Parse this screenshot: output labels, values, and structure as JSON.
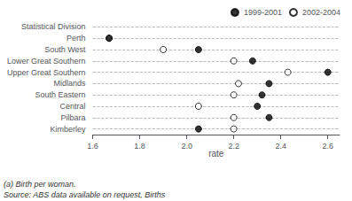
{
  "chart_data": {
    "type": "scatter",
    "categories": [
      "Statistical Division",
      "Perth",
      "South West",
      "Lower Great Southern",
      "Upper Great Southern",
      "Midlands",
      "South Eastern",
      "Central",
      "Pilbara",
      "Kimberley"
    ],
    "series": [
      {
        "name": "1999-2001",
        "color": "black",
        "marker": "circle",
        "values": [
          null,
          1.67,
          2.05,
          2.28,
          2.6,
          2.35,
          2.32,
          2.3,
          2.35,
          2.05
        ]
      },
      {
        "name": "2002-2004",
        "color": "white",
        "marker": "circle",
        "values": [
          null,
          1.67,
          1.9,
          2.2,
          2.43,
          2.22,
          2.2,
          2.05,
          2.2,
          2.2
        ]
      }
    ],
    "xlabel": "rate",
    "xlim": [
      1.6,
      2.65
    ],
    "xticks": [
      1.6,
      1.8,
      {
        "value": 2.0,
        "label": "2.0"
      },
      2.2,
      2.4,
      2.6
    ],
    "grid": true,
    "legend": "upper right",
    "annotations": [
      "(a) Birth per woman.",
      "Source: ABS data available on request, Births"
    ]
  }
}
